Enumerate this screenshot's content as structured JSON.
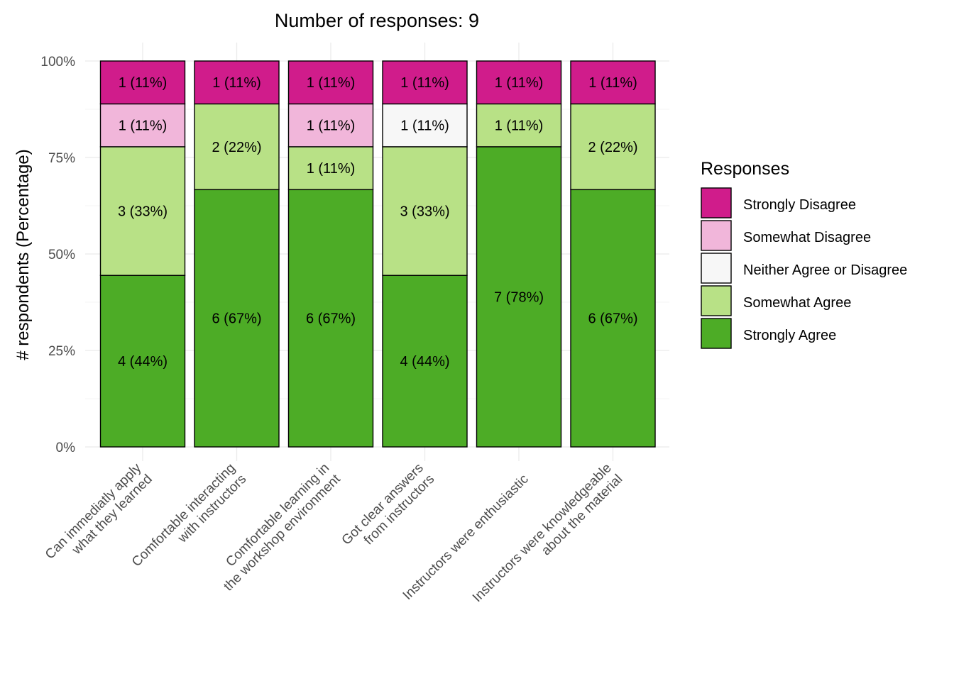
{
  "chart_data": {
    "type": "bar",
    "stacked": true,
    "normalized": true,
    "title": "Number of responses: 9",
    "ylabel": "# respondents (Percentage)",
    "xlabel": "",
    "ylim": [
      0,
      100
    ],
    "yticks": [
      "0%",
      "25%",
      "50%",
      "75%",
      "100%"
    ],
    "grid": true,
    "legend_position": "right",
    "legend_title": "Responses",
    "total_responses": 9,
    "categories": [
      [
        "Can immediatly apply",
        "what they learned"
      ],
      [
        "Comfortable interacting",
        "with instructors"
      ],
      [
        "Comfortable learning in",
        "the workshop environment"
      ],
      [
        "Got clear answers",
        "from instructors"
      ],
      [
        "Instructors were enthusiastic"
      ],
      [
        "Instructors were knowledgeable",
        "about the material"
      ]
    ],
    "series": [
      {
        "name": "Strongly Disagree",
        "color": "#d01c8b",
        "values": [
          1,
          1,
          1,
          1,
          1,
          1
        ],
        "labels": [
          "1 (11%)",
          "1 (11%)",
          "1 (11%)",
          "1 (11%)",
          "1 (11%)",
          "1 (11%)"
        ]
      },
      {
        "name": "Somewhat Disagree",
        "color": "#f1b6da",
        "values": [
          1,
          0,
          1,
          0,
          0,
          0
        ],
        "labels": [
          "1 (11%)",
          "",
          "1 (11%)",
          "",
          "",
          ""
        ]
      },
      {
        "name": "Neither Agree or Disagree",
        "color": "#f7f7f7",
        "values": [
          0,
          0,
          0,
          1,
          0,
          0
        ],
        "labels": [
          "",
          "",
          "",
          "1 (11%)",
          "",
          ""
        ]
      },
      {
        "name": "Somewhat Agree",
        "color": "#b8e186",
        "values": [
          3,
          2,
          1,
          3,
          1,
          2
        ],
        "labels": [
          "3 (33%)",
          "2 (22%)",
          "1 (11%)",
          "3 (33%)",
          "1 (11%)",
          "2 (22%)"
        ]
      },
      {
        "name": "Strongly Agree",
        "color": "#4dac26",
        "values": [
          4,
          6,
          6,
          4,
          7,
          6
        ],
        "labels": [
          "4 (44%)",
          "6 (67%)",
          "6 (67%)",
          "4 (44%)",
          "7 (78%)",
          "6 (67%)"
        ]
      }
    ]
  }
}
